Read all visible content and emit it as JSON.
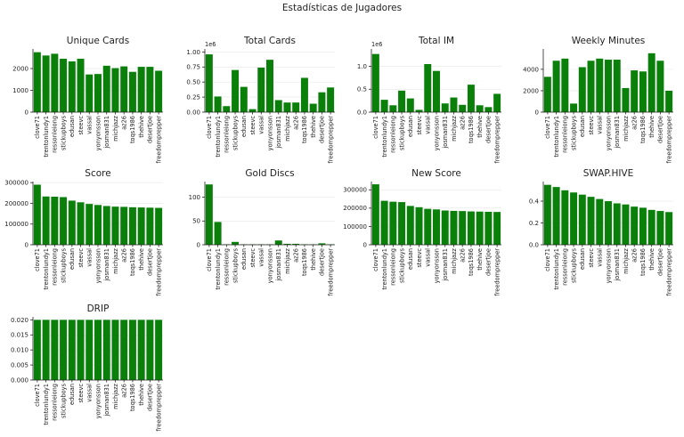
{
  "figure_title": "Estadísticas de Jugadores",
  "chart_data": [
    {
      "type": "bar",
      "title": "Unique Cards",
      "categories": [
        "clove71",
        "trentonlundy1",
        "ressonleiong",
        "stickupboys",
        "edusan",
        "steevc",
        "vassal",
        "yonyonsson",
        "josman831",
        "michjazz",
        "az26",
        "toqs1986",
        "thehive",
        "desertjoe",
        "freedomprepper"
      ],
      "values": [
        2750,
        2600,
        2680,
        2450,
        2330,
        2450,
        1730,
        1750,
        2130,
        2020,
        2100,
        1850,
        2080,
        2080,
        1900
      ],
      "ylim": [
        0,
        2900
      ],
      "yticks": [
        0,
        1000,
        2000
      ],
      "ytick_labels": [
        "0",
        "1000",
        "2000"
      ],
      "multiplier": ""
    },
    {
      "type": "bar",
      "title": "Total Cards",
      "categories": [
        "clove71",
        "trentonlundy1",
        "ressonleiong",
        "stickupboys",
        "edusan",
        "steevc",
        "vassal",
        "yonyonsson",
        "josman831",
        "michjazz",
        "az26",
        "toqs1986",
        "thehive",
        "desertjoe",
        "freedomprepper"
      ],
      "values": [
        960000,
        260000,
        100000,
        700000,
        420000,
        50000,
        740000,
        870000,
        200000,
        160000,
        160000,
        570000,
        140000,
        330000,
        410000
      ],
      "ylim": [
        0,
        1050000
      ],
      "yticks": [
        0,
        250000,
        500000,
        750000,
        1000000
      ],
      "ytick_labels": [
        "0.00",
        "0.25",
        "0.50",
        "0.75",
        "1.00"
      ],
      "multiplier": "1e6"
    },
    {
      "type": "bar",
      "title": "Total IM",
      "categories": [
        "clove71",
        "trentonlundy1",
        "ressonleiong",
        "stickupboys",
        "edusan",
        "steevc",
        "vassal",
        "yonyonsson",
        "josman831",
        "michjazz",
        "az26",
        "toqs1986",
        "thehive",
        "desertjoe",
        "freedomprepper"
      ],
      "values": [
        1270000,
        270000,
        150000,
        470000,
        300000,
        50000,
        1050000,
        900000,
        190000,
        320000,
        160000,
        600000,
        150000,
        110000,
        400000
      ],
      "ylim": [
        0,
        1380000
      ],
      "yticks": [
        0,
        500000,
        1000000
      ],
      "ytick_labels": [
        "0.0",
        "0.5",
        "1.0"
      ],
      "multiplier": "1e6"
    },
    {
      "type": "bar",
      "title": "Weekly Minutes",
      "categories": [
        "clove71",
        "trentonlundy1",
        "ressonleiong",
        "stickupboys",
        "edusan",
        "steevc",
        "vassal",
        "yonyonsson",
        "josman831",
        "michjazz",
        "az26",
        "toqs1986",
        "thehive",
        "desertjoe",
        "freedomprepper"
      ],
      "values": [
        3300,
        4800,
        5000,
        800,
        4200,
        4800,
        5000,
        4900,
        4900,
        2250,
        3900,
        3800,
        5500,
        4800,
        2000
      ],
      "ylim": [
        0,
        5900
      ],
      "yticks": [
        0,
        2000,
        4000
      ],
      "ytick_labels": [
        "0",
        "2000",
        "4000"
      ],
      "multiplier": ""
    },
    {
      "type": "bar",
      "title": "Score",
      "categories": [
        "clove71",
        "trentonlundy1",
        "ressonleiong",
        "stickupboys",
        "edusan",
        "steevc",
        "vassal",
        "yonyonsson",
        "josman831",
        "michjazz",
        "az26",
        "toqs1986",
        "thehive",
        "desertjoe",
        "freedomprepper"
      ],
      "values": [
        290000,
        233000,
        232000,
        230000,
        213000,
        205000,
        197000,
        192000,
        187000,
        184000,
        183000,
        181000,
        180000,
        179000,
        178000
      ],
      "ylim": [
        0,
        305000
      ],
      "yticks": [
        0,
        100000,
        200000,
        300000
      ],
      "ytick_labels": [
        "0",
        "100000",
        "200000",
        "300000"
      ],
      "multiplier": ""
    },
    {
      "type": "bar",
      "title": "Gold Discs",
      "categories": [
        "clove71",
        "trentonlundy1",
        "ressonleiong",
        "stickupboys",
        "edusan",
        "steevc",
        "vassal",
        "yonyonsson",
        "josman831",
        "michjazz",
        "az26",
        "toqs1986",
        "thehive",
        "desertjoe",
        "freedomprepper"
      ],
      "values": [
        127,
        48,
        1,
        6,
        1,
        1,
        1,
        1,
        9,
        2,
        2,
        1,
        1,
        3,
        1
      ],
      "ylim": [
        0,
        133
      ],
      "yticks": [
        0,
        50,
        100
      ],
      "ytick_labels": [
        "0",
        "50",
        "100"
      ],
      "multiplier": ""
    },
    {
      "type": "bar",
      "title": "New Score",
      "categories": [
        "clove71",
        "trentonlundy1",
        "ressonleiong",
        "stickupboys",
        "edusan",
        "steevc",
        "vassal",
        "yonyonsson",
        "josman831",
        "michjazz",
        "az26",
        "toqs1986",
        "thehive",
        "desertjoe",
        "freedomprepper"
      ],
      "values": [
        330000,
        240000,
        235000,
        233000,
        212000,
        205000,
        196000,
        193000,
        187000,
        185000,
        184000,
        182000,
        181000,
        180000,
        179000
      ],
      "ylim": [
        0,
        345000
      ],
      "yticks": [
        0,
        100000,
        200000,
        300000
      ],
      "ytick_labels": [
        "0",
        "100000",
        "200000",
        "300000"
      ],
      "multiplier": ""
    },
    {
      "type": "bar",
      "title": "SWAP.HIVE",
      "categories": [
        "clove71",
        "trentonlundy1",
        "ressonleiong",
        "stickupboys",
        "edusan",
        "steevc",
        "vassal",
        "yonyonsson",
        "josman831",
        "michjazz",
        "az26",
        "toqs1986",
        "thehive",
        "desertjoe",
        "freedomprepper"
      ],
      "values": [
        0.55,
        0.53,
        0.5,
        0.48,
        0.46,
        0.44,
        0.42,
        0.4,
        0.38,
        0.37,
        0.35,
        0.34,
        0.32,
        0.31,
        0.3
      ],
      "ylim": [
        0,
        0.58
      ],
      "yticks": [
        0,
        0.2,
        0.4
      ],
      "ytick_labels": [
        "0.0",
        "0.2",
        "0.4"
      ],
      "multiplier": ""
    },
    {
      "type": "bar",
      "title": "DRIP",
      "categories": [
        "clove71",
        "trentonlundy1",
        "ressonleiong",
        "stickupboys",
        "edusan",
        "steevc",
        "vassal",
        "yonyonsson",
        "josman831",
        "michjazz",
        "az26",
        "toqs1986",
        "thehive",
        "desertjoe",
        "freedomprepper"
      ],
      "values": [
        0.02,
        0.02,
        0.02,
        0.02,
        0.02,
        0.02,
        0.02,
        0.02,
        0.02,
        0.02,
        0.02,
        0.02,
        0.02,
        0.02,
        0.02
      ],
      "ylim": [
        0,
        0.021
      ],
      "yticks": [
        0,
        0.005,
        0.01,
        0.015,
        0.02
      ],
      "ytick_labels": [
        "0.000",
        "0.005",
        "0.010",
        "0.015",
        "0.020"
      ],
      "multiplier": ""
    }
  ]
}
